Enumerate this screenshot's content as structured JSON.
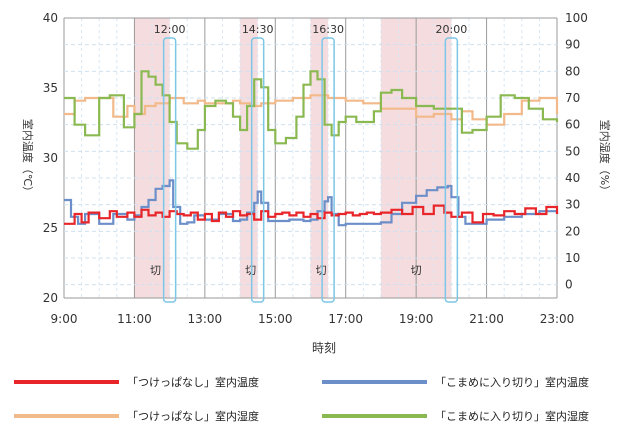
{
  "chart_data": {
    "type": "line",
    "xlabel": "時刻",
    "ylabel_left": "室内温度（℃）",
    "ylabel_right": "室内湿度（%）",
    "x_ticks": [
      "9:00",
      "11:00",
      "13:00",
      "15:00",
      "17:00",
      "19:00",
      "21:00",
      "23:00"
    ],
    "x_range_hours": [
      9,
      23
    ],
    "y_left_range": [
      20,
      40
    ],
    "y_left_ticks": [
      "20",
      "25",
      "30",
      "35",
      "40"
    ],
    "y_right_range": [
      -5,
      100
    ],
    "y_right_ticks": [
      "0",
      "10",
      "20",
      "30",
      "40",
      "50",
      "60",
      "70",
      "80",
      "90",
      "100"
    ],
    "shaded_periods": [
      [
        11.0,
        12.0
      ],
      [
        14.0,
        14.5
      ],
      [
        16.0,
        16.5
      ],
      [
        18.0,
        20.0
      ]
    ],
    "shaded_label": "切",
    "shaded_label_positions": [
      [
        11.6,
        22.0
      ],
      [
        14.3,
        22.0
      ],
      [
        16.3,
        22.0
      ],
      [
        19.0,
        22.0
      ]
    ],
    "highlight_boxes": [
      {
        "label": "12:00",
        "center": 12.0
      },
      {
        "label": "14:30",
        "center": 14.5
      },
      {
        "label": "16:30",
        "center": 16.5
      },
      {
        "label": "20:00",
        "center": 20.0
      }
    ],
    "colors": {
      "temp_on": "#e8262a",
      "temp_off": "#6d8fc9",
      "hum_on": "#f2b98a",
      "hum_off": "#8ab851",
      "shade": "#f4dcdf",
      "box": "#7cc6e6",
      "minor_grid": "#eaf3fb"
    },
    "series": [
      {
        "name": "「つけっぱなし」室内温度",
        "axis": "left",
        "x": [
          9.0,
          9.3,
          9.5,
          9.7,
          10.0,
          10.3,
          10.5,
          10.8,
          11.0,
          11.2,
          11.4,
          11.6,
          11.8,
          12.0,
          12.2,
          12.4,
          12.6,
          12.8,
          13.0,
          13.2,
          13.4,
          13.6,
          13.8,
          14.0,
          14.2,
          14.4,
          14.6,
          14.8,
          15.0,
          15.2,
          15.4,
          15.6,
          15.8,
          16.0,
          16.2,
          16.4,
          16.6,
          16.8,
          17.0,
          17.2,
          17.4,
          17.6,
          17.8,
          18.0,
          18.3,
          18.6,
          18.9,
          19.2,
          19.5,
          19.8,
          20.0,
          20.3,
          20.6,
          20.9,
          21.2,
          21.5,
          21.8,
          22.1,
          22.4,
          22.7,
          23.0
        ],
        "values": [
          25.3,
          26.0,
          25.4,
          26.1,
          25.7,
          26.2,
          25.8,
          26.1,
          25.8,
          26.3,
          25.9,
          26.1,
          25.8,
          26.2,
          26.0,
          25.9,
          26.1,
          25.6,
          26.0,
          25.5,
          26.1,
          25.8,
          26.2,
          25.9,
          26.0,
          25.6,
          26.2,
          25.8,
          26.0,
          26.1,
          25.9,
          26.1,
          25.8,
          26.0,
          25.7,
          26.1,
          25.9,
          26.0,
          26.1,
          25.9,
          26.0,
          26.1,
          26.0,
          26.1,
          26.3,
          26.0,
          26.5,
          26.0,
          26.6,
          26.1,
          25.8,
          26.1,
          25.4,
          26.0,
          25.9,
          26.2,
          26.0,
          26.4,
          26.0,
          26.5,
          26.0
        ]
      },
      {
        "name": "「こまめに入り切り」室内温度",
        "axis": "left",
        "x": [
          9.0,
          9.2,
          9.4,
          9.6,
          10.0,
          10.4,
          10.8,
          11.0,
          11.2,
          11.4,
          11.6,
          11.8,
          12.0,
          12.1,
          12.3,
          12.5,
          12.7,
          13.0,
          13.4,
          13.8,
          14.0,
          14.2,
          14.4,
          14.5,
          14.6,
          14.8,
          15.0,
          15.4,
          15.8,
          16.0,
          16.2,
          16.4,
          16.5,
          16.6,
          16.8,
          17.0,
          17.5,
          18.0,
          18.3,
          18.6,
          19.0,
          19.3,
          19.6,
          19.9,
          20.0,
          20.2,
          20.4,
          20.6,
          21.0,
          21.5,
          22.0,
          22.5,
          23.0
        ],
        "values": [
          27.0,
          25.8,
          25.3,
          26.0,
          25.3,
          26.0,
          25.6,
          25.9,
          26.5,
          27.0,
          27.8,
          28.0,
          28.4,
          26.5,
          25.3,
          25.4,
          25.9,
          25.6,
          26.0,
          25.5,
          25.6,
          26.1,
          26.8,
          27.6,
          26.8,
          25.5,
          25.5,
          25.6,
          25.5,
          25.6,
          26.2,
          26.9,
          27.2,
          26.0,
          25.2,
          25.3,
          25.3,
          25.4,
          26.0,
          26.8,
          27.3,
          27.7,
          27.9,
          28.0,
          27.2,
          25.8,
          25.3,
          25.3,
          25.6,
          25.8,
          26.0,
          26.2,
          26.0
        ]
      },
      {
        "name": "「つけっぱなし」室内湿度",
        "axis": "right",
        "x": [
          9.0,
          9.3,
          9.6,
          10.0,
          10.4,
          10.8,
          11.0,
          11.3,
          11.6,
          12.0,
          12.4,
          12.8,
          13.0,
          13.4,
          13.8,
          14.0,
          14.3,
          14.6,
          15.0,
          15.5,
          16.0,
          16.5,
          17.0,
          17.5,
          18.0,
          18.5,
          19.0,
          19.5,
          20.0,
          20.3,
          20.6,
          21.0,
          21.5,
          22.0,
          22.5,
          23.0
        ],
        "values": [
          64,
          69,
          70,
          70,
          63,
          67,
          64,
          67,
          68,
          70,
          68,
          69,
          68,
          68,
          69,
          68,
          67,
          68,
          69,
          70,
          71,
          70,
          69,
          68,
          66,
          66,
          63,
          64,
          62,
          65,
          62,
          60,
          64,
          69,
          70,
          64
        ]
      },
      {
        "name": "「こまめに入り切り」室内湿度",
        "axis": "right",
        "x": [
          9.0,
          9.3,
          9.6,
          10.0,
          10.3,
          10.5,
          10.7,
          11.0,
          11.2,
          11.4,
          11.6,
          11.8,
          12.0,
          12.2,
          12.5,
          12.8,
          13.0,
          13.3,
          13.6,
          13.8,
          14.0,
          14.2,
          14.4,
          14.6,
          14.8,
          15.0,
          15.3,
          15.6,
          15.8,
          16.0,
          16.2,
          16.4,
          16.6,
          16.8,
          17.0,
          17.3,
          17.6,
          17.8,
          18.0,
          18.3,
          18.6,
          19.0,
          19.5,
          20.0,
          20.3,
          20.6,
          21.0,
          21.4,
          21.8,
          22.2,
          22.6,
          23.0
        ],
        "values": [
          70,
          60,
          56,
          70,
          71,
          71,
          59,
          64,
          80,
          78,
          75,
          71,
          61,
          53,
          51,
          58,
          67,
          69,
          68,
          63,
          58,
          67,
          77,
          74,
          58,
          53,
          55,
          63,
          75,
          80,
          77,
          60,
          56,
          61,
          63,
          61,
          61,
          65,
          72,
          73,
          70,
          67,
          66,
          66,
          57,
          58,
          63,
          71,
          70,
          66,
          62,
          61
        ]
      }
    ],
    "legend": [
      {
        "label": "「つけっぱなし」室内温度",
        "series": 0
      },
      {
        "label": "「こまめに入り切り」室内温度",
        "series": 1
      },
      {
        "label": "「つけっぱなし」室内湿度",
        "series": 2
      },
      {
        "label": "「こまめに入り切り」室内湿度",
        "series": 3
      }
    ]
  }
}
